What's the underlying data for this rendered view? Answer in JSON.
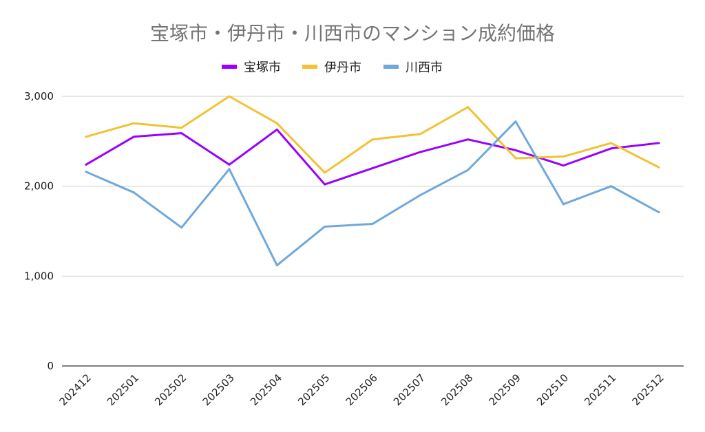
{
  "chart_data": {
    "type": "line",
    "title": "宝塚市・伊丹市・川西市のマンション成約価格",
    "xlabel": "",
    "ylabel": "",
    "categories": [
      "202412",
      "202501",
      "202502",
      "202503",
      "202504",
      "202505",
      "202506",
      "202507",
      "202508",
      "202509",
      "202510",
      "202511",
      "202512"
    ],
    "ylim": [
      0,
      3000
    ],
    "yticks": [
      0,
      1000,
      2000,
      3000
    ],
    "ytick_labels": [
      "0",
      "1,000",
      "2,000",
      "3,000"
    ],
    "grid": true,
    "legend_position": "top-center",
    "series": [
      {
        "name": "宝塚市",
        "color": "#9900ff",
        "values": [
          2240,
          2550,
          2590,
          2240,
          2630,
          2020,
          2200,
          2380,
          2520,
          2400,
          2230,
          2420,
          2480
        ]
      },
      {
        "name": "伊丹市",
        "color": "#f1c232",
        "values": [
          2550,
          2700,
          2650,
          3000,
          2700,
          2150,
          2520,
          2580,
          2880,
          2310,
          2330,
          2480,
          2210
        ]
      },
      {
        "name": "川西市",
        "color": "#6fa8dc",
        "values": [
          2160,
          1930,
          1540,
          2190,
          1120,
          1550,
          1580,
          1900,
          2180,
          2720,
          1800,
          2000,
          1710
        ]
      }
    ]
  }
}
